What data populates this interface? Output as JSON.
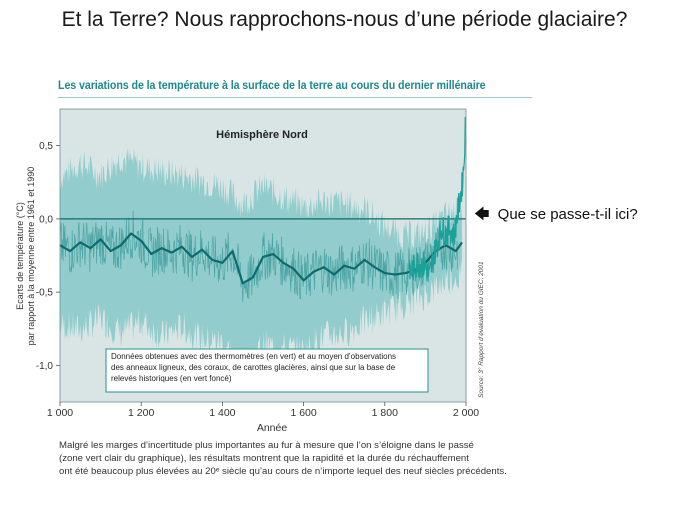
{
  "slide": {
    "title": "Et la Terre? Nous rapprochons-nous d’une période glaciaire?"
  },
  "figure": {
    "title": "Les variations de la température à la surface de la terre au cours du dernier millénaire",
    "source": "Source: 3° Rapport d’évaluation du GIEC, 2001",
    "caption_lines": [
      "Malgré les marges d’incertitude plus importantes au fur à mesure que l’on s’éloigne dans le passé",
      "(zone vert clair du graphique), les résultats montrent que la rapidité et la durée du réchauffement",
      "ont été beaucoup plus élevées au 20ᵉ siècle qu’au cours de n’importe lequel des neuf siècles précédents."
    ],
    "accent_color": "#1f8a8a"
  },
  "callout": {
    "arrow_icon": "left-arrow-icon",
    "text": "Que se passe-t-il ici?"
  },
  "chart_data": {
    "type": "line",
    "title": "Hémisphère Nord",
    "xlabel": "Année",
    "ylabel_lines": [
      "Ecarts de température (°C)",
      "par rapport à la moyenne entre 1961 et 1990"
    ],
    "xlim": [
      1000,
      2000
    ],
    "ylim": [
      -1.25,
      0.75
    ],
    "x_ticks": [
      1000,
      1200,
      1400,
      1600,
      1800,
      2000
    ],
    "x_tick_labels": [
      "1 000",
      "1 200",
      "1 400",
      "1 600",
      "1 800",
      "2 000"
    ],
    "y_ticks": [
      0.5,
      0.0,
      -0.5,
      -1.0
    ],
    "y_tick_labels": [
      "0,5",
      "0,0",
      "-0,5",
      "-1,0"
    ],
    "reference_line": 0.0,
    "legend_text": [
      "Données obtenues avec des thermomètres (en vert) et au moyen d’observations",
      "des anneaux ligneux, des coraux, de carottes glacières, ainsi que sur la base de",
      "relevés historiques (en vert foncé)"
    ],
    "colors": {
      "uncertainty": "#8fcaca",
      "proxy": "#3f9e9e",
      "smoothed": "#0d6b6b",
      "instrumental": "#1aa19a",
      "plot_bg": "#d9e5e5",
      "legend_border": "#2e8f8f"
    },
    "series": [
      {
        "key": "proxy_smoothed",
        "x": [
          1000,
          1025,
          1050,
          1075,
          1100,
          1125,
          1150,
          1175,
          1200,
          1225,
          1250,
          1275,
          1300,
          1325,
          1350,
          1375,
          1400,
          1425,
          1450,
          1475,
          1500,
          1525,
          1550,
          1575,
          1600,
          1625,
          1650,
          1675,
          1700,
          1725,
          1750,
          1775,
          1800,
          1825,
          1850,
          1875,
          1900,
          1925,
          1950,
          1975,
          1990
        ],
        "y": [
          -0.18,
          -0.22,
          -0.16,
          -0.2,
          -0.14,
          -0.22,
          -0.18,
          -0.1,
          -0.15,
          -0.24,
          -0.2,
          -0.23,
          -0.19,
          -0.26,
          -0.21,
          -0.28,
          -0.3,
          -0.22,
          -0.44,
          -0.4,
          -0.26,
          -0.24,
          -0.3,
          -0.34,
          -0.42,
          -0.36,
          -0.33,
          -0.38,
          -0.32,
          -0.34,
          -0.28,
          -0.33,
          -0.37,
          -0.38,
          -0.37,
          -0.35,
          -0.3,
          -0.22,
          -0.18,
          -0.22,
          -0.16
        ]
      },
      {
        "key": "uncertainty_upper",
        "x": [
          1000,
          1050,
          1100,
          1150,
          1200,
          1250,
          1300,
          1350,
          1400,
          1450,
          1500,
          1550,
          1600,
          1650,
          1700,
          1750,
          1800,
          1850,
          1900,
          1950,
          1990
        ],
        "y": [
          0.28,
          0.38,
          0.3,
          0.42,
          0.36,
          0.32,
          0.3,
          0.26,
          0.22,
          0.1,
          0.22,
          0.15,
          0.08,
          0.12,
          0.1,
          0.07,
          -0.05,
          -0.12,
          -0.1,
          0.02,
          0.08
        ]
      },
      {
        "key": "uncertainty_lower",
        "x": [
          1000,
          1050,
          1100,
          1150,
          1200,
          1250,
          1300,
          1350,
          1400,
          1450,
          1500,
          1550,
          1600,
          1650,
          1700,
          1750,
          1800,
          1850,
          1900,
          1950,
          1990
        ],
        "y": [
          -0.72,
          -0.76,
          -0.68,
          -0.78,
          -0.7,
          -0.8,
          -0.74,
          -0.82,
          -0.84,
          -1.02,
          -0.86,
          -0.88,
          -0.9,
          -0.8,
          -0.78,
          -0.7,
          -0.64,
          -0.58,
          -0.52,
          -0.42,
          -0.38
        ]
      },
      {
        "key": "instrumental",
        "x": [
          1860,
          1880,
          1900,
          1910,
          1920,
          1930,
          1940,
          1950,
          1960,
          1970,
          1980,
          1990,
          1995,
          1998
        ],
        "y": [
          -0.38,
          -0.3,
          -0.32,
          -0.4,
          -0.26,
          -0.16,
          -0.06,
          -0.1,
          -0.06,
          -0.12,
          0.05,
          0.22,
          0.38,
          0.62
        ]
      }
    ]
  }
}
